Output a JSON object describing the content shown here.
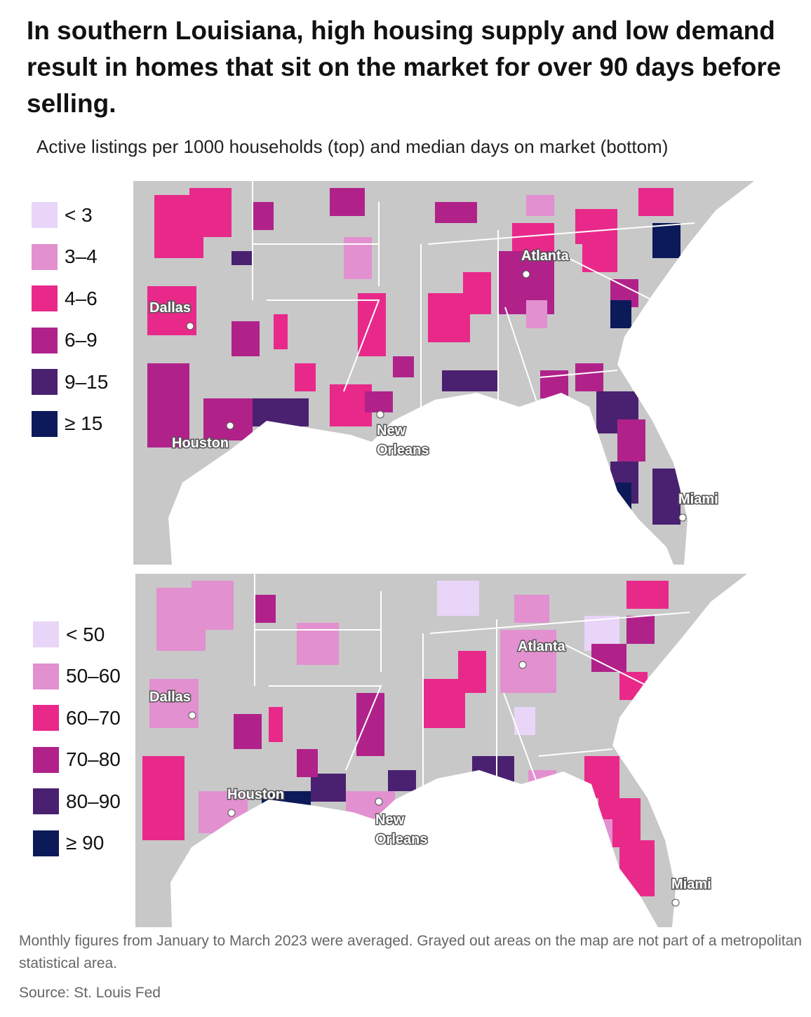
{
  "title": "In southern Louisiana, high housing supply and low demand result in homes that sit on the market for over 90 days before selling.",
  "subtitle": "Active listings per 1000 households (top) and median days on market (bottom)",
  "colors": {
    "c0": "#e8d5f8",
    "c1": "#e290d0",
    "c2": "#e8298a",
    "c3": "#b0228a",
    "c4": "#4a2170",
    "c5": "#0c1a5a",
    "nonmetro": "#c8c8c8"
  },
  "legend_top": [
    "< 3",
    "3–4",
    "4–6",
    "6–9",
    "9–15",
    "≥ 15"
  ],
  "legend_bottom": [
    "< 50",
    "50–60",
    "60–70",
    "70–80",
    "80–90",
    "≥ 90"
  ],
  "cities": {
    "atlanta": "Atlanta",
    "dallas": "Dallas",
    "houston": "Houston",
    "new": "New",
    "orleans": "Orleans",
    "miami": "Miami"
  },
  "note": "Monthly figures from January to March 2023 were averaged. Grayed out areas on the map are not part of a metropolitan statistical area.",
  "source": "Source: St. Louis Fed"
}
